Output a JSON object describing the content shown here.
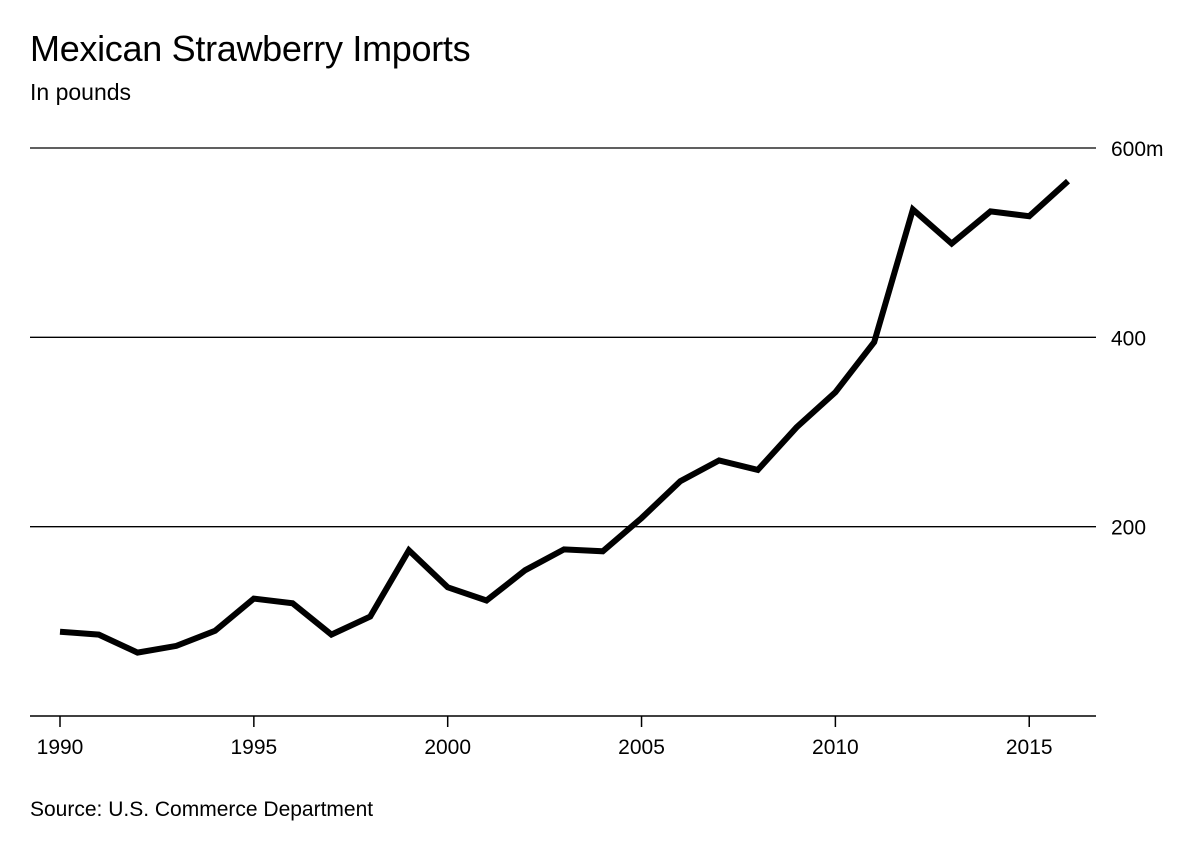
{
  "chart_data": {
    "type": "line",
    "title": "Mexican Strawberry Imports",
    "subtitle": "In pounds",
    "source": "Source: U.S. Commerce Department",
    "xlabel": "",
    "ylabel": "",
    "xlim": [
      1990,
      2016
    ],
    "ylim": [
      0,
      600
    ],
    "x_ticks": [
      1990,
      1995,
      2000,
      2005,
      2010,
      2015
    ],
    "x_tick_labels": [
      "1990",
      "1995",
      "2000",
      "2005",
      "2010",
      "2015"
    ],
    "y_ticks": [
      200,
      400,
      600
    ],
    "y_tick_labels": [
      "200",
      "400",
      "600m"
    ],
    "grid": true,
    "y_axis_side": "right",
    "unit": "million pounds",
    "series": [
      {
        "name": "Mexican strawberry imports",
        "color": "#000000",
        "x": [
          1990,
          1991,
          1992,
          1993,
          1994,
          1995,
          1996,
          1997,
          1998,
          1999,
          2000,
          2001,
          2002,
          2003,
          2004,
          2005,
          2006,
          2007,
          2008,
          2009,
          2010,
          2011,
          2012,
          2013,
          2014,
          2015,
          2016
        ],
        "values": [
          89,
          86,
          67,
          74,
          90,
          124,
          119,
          86,
          105,
          175,
          136,
          122,
          154,
          176,
          174,
          209,
          248,
          270,
          260,
          305,
          342,
          395,
          535,
          499,
          533,
          528,
          565
        ]
      }
    ]
  }
}
